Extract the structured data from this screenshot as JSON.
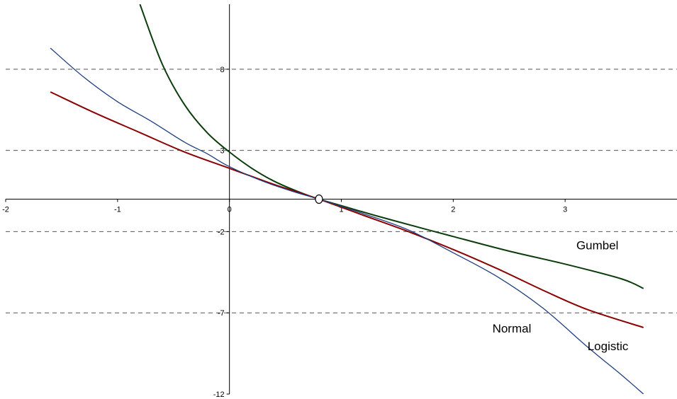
{
  "chart_data": {
    "type": "line",
    "title": "",
    "xlabel": "",
    "ylabel": "",
    "xlim": [
      -2,
      4
    ],
    "ylim": [
      -12,
      12
    ],
    "x_ticks": [
      -2,
      -1,
      0,
      1,
      2,
      3
    ],
    "y_ticks": [
      8,
      3,
      -2,
      -7,
      -12
    ],
    "grid": {
      "horizontal_dashed": true,
      "vertical": false
    },
    "marker": {
      "x": 0.8,
      "y": 0
    },
    "colors": {
      "Gumbel": "#0b3d0b",
      "Logistic": "#8b0000",
      "Normal": "#1f3f7f"
    },
    "series": [
      {
        "name": "Gumbel",
        "x": [
          -0.8,
          -0.6,
          -0.4,
          -0.2,
          0,
          0.2,
          0.4,
          0.6,
          0.8,
          1.0,
          1.3,
          1.7,
          2.0,
          2.5,
          3.0,
          3.5,
          3.7
        ],
        "y": [
          12,
          8.3,
          5.8,
          4.1,
          2.9,
          1.9,
          1.1,
          0.5,
          0,
          -0.4,
          -1.0,
          -1.75,
          -2.3,
          -3.2,
          -4.0,
          -4.9,
          -5.5
        ]
      },
      {
        "name": "Logistic",
        "x": [
          -1.6,
          -1.2,
          -0.8,
          -0.4,
          0,
          0.4,
          0.8,
          1.2,
          1.6,
          2.0,
          2.4,
          2.8,
          3.2,
          3.7
        ],
        "y": [
          6.6,
          5.3,
          4.1,
          2.9,
          1.9,
          0.9,
          0,
          -1.0,
          -2.0,
          -3.1,
          -4.3,
          -5.6,
          -6.8,
          -7.9
        ]
      },
      {
        "name": "Normal",
        "x": [
          -1.6,
          -1.3,
          -1.0,
          -0.7,
          -0.4,
          -0.2,
          0,
          0.3,
          0.6,
          0.8,
          1.2,
          1.6,
          2.0,
          2.4,
          2.8,
          3.2,
          3.5,
          3.7
        ],
        "y": [
          9.3,
          7.5,
          6.0,
          4.8,
          3.5,
          2.8,
          2.0,
          1.1,
          0.4,
          0,
          -0.9,
          -1.9,
          -3.3,
          -4.8,
          -6.7,
          -9.1,
          -10.8,
          -12.0
        ]
      }
    ],
    "series_labels": [
      {
        "text": "Gumbel",
        "series": "Gumbel",
        "x": 3.1,
        "y": -3.1
      },
      {
        "text": "Normal",
        "series": "Normal",
        "x": 2.35,
        "y": -8.2
      },
      {
        "text": "Logistic",
        "series": "Logistic",
        "x": 3.2,
        "y": -9.3
      }
    ]
  }
}
